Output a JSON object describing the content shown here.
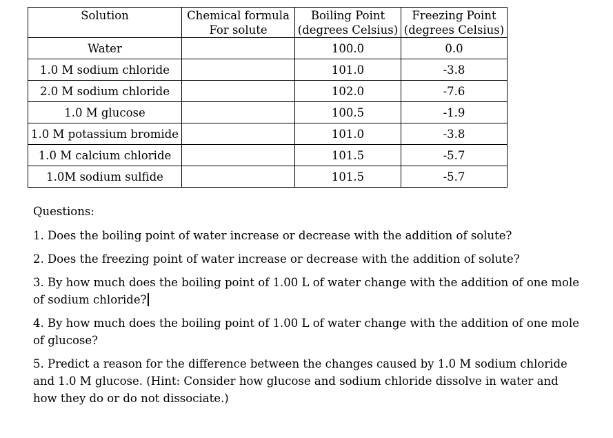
{
  "table": {
    "headers": [
      {
        "line1": "Solution",
        "line2": ""
      },
      {
        "line1": "Chemical formula",
        "line2": "For solute"
      },
      {
        "line1": "Boiling Point",
        "line2": "(degrees Celsius)"
      },
      {
        "line1": "Freezing Point",
        "line2": "(degrees Celsius)"
      }
    ],
    "rows": [
      {
        "solution": "Water",
        "formula": "",
        "boiling": "100.0",
        "freezing": "0.0"
      },
      {
        "solution": "1.0 M sodium chloride",
        "formula": "",
        "boiling": "101.0",
        "freezing": "-3.8"
      },
      {
        "solution": "2.0 M sodium chloride",
        "formula": "",
        "boiling": "102.0",
        "freezing": "-7.6"
      },
      {
        "solution": "1.0 M glucose",
        "formula": "",
        "boiling": "100.5",
        "freezing": "-1.9"
      },
      {
        "solution": "1.0 M potassium bromide",
        "formula": "",
        "boiling": "101.0",
        "freezing": "-3.8"
      },
      {
        "solution": "1.0 M calcium chloride",
        "formula": "",
        "boiling": "101.5",
        "freezing": "-5.7"
      },
      {
        "solution": "1.0M sodium sulfide",
        "formula": "",
        "boiling": "101.5",
        "freezing": "-5.7"
      }
    ]
  },
  "questions": {
    "heading": "Questions:",
    "items": [
      "1. Does the boiling point of water increase or decrease with the addition of solute?",
      "2. Does the freezing point of water increase or decrease with the addition of solute?",
      "3. By how much does the boiling point of 1.00 L of water change with the addition of one mole of sodium chloride?",
      "4. By how much does the boiling point of 1.00 L of water change with the addition of one mole of glucose?",
      "5. Predict a reason for the difference between the changes caused by 1.0 M sodium chloride and 1.0 M glucose. (Hint: Consider how glucose and sodium chloride dissolve in water and how they do or do not dissociate.)"
    ]
  },
  "colors": {
    "text": "#000000",
    "background": "#ffffff",
    "table_border": "#000000"
  }
}
